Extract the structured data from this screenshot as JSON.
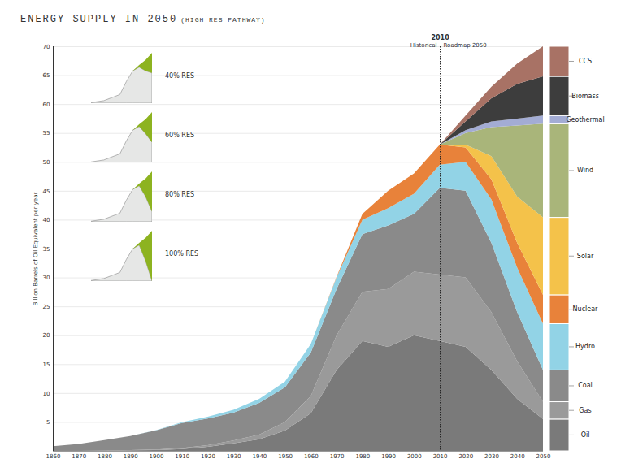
{
  "chart_data": {
    "type": "area",
    "title": "ENERGY SUPPLY IN 2050",
    "subtitle": "(HIGH RES PATHWAY)",
    "y_label": "Billion Barrels of Oil Equivalent per year",
    "stacked": true,
    "grid": true,
    "legend": "right",
    "x": [
      1860,
      1870,
      1880,
      1890,
      1900,
      1910,
      1920,
      1930,
      1940,
      1950,
      1960,
      1970,
      1980,
      1990,
      2000,
      2010,
      2020,
      2030,
      2040,
      2050
    ],
    "xlim": [
      1860,
      2050
    ],
    "xticks": [
      1860,
      1870,
      1880,
      1890,
      1900,
      1910,
      1920,
      1930,
      1940,
      1950,
      1960,
      1970,
      1980,
      1990,
      2000,
      2010,
      2020,
      2030,
      2040,
      2050
    ],
    "ylim": [
      0,
      70
    ],
    "yticks": [
      5,
      10,
      15,
      20,
      25,
      30,
      35,
      40,
      45,
      50,
      55,
      60,
      65,
      70
    ],
    "series": [
      {
        "name": "Oil",
        "color": "#7a7a7a",
        "values": [
          0,
          0,
          0.05,
          0.1,
          0.15,
          0.3,
          0.7,
          1.3,
          2,
          3.5,
          6.5,
          14,
          19,
          18,
          20,
          19,
          18,
          14,
          9,
          5.5
        ]
      },
      {
        "name": "Gas",
        "color": "#9a9a9a",
        "values": [
          0,
          0,
          0,
          0.05,
          0.1,
          0.2,
          0.3,
          0.5,
          0.8,
          1.5,
          3,
          6,
          8.5,
          10,
          11,
          11.5,
          12,
          10,
          6.5,
          3
        ]
      },
      {
        "name": "Coal",
        "color": "#8a8a8a",
        "values": [
          0.8,
          1.2,
          1.8,
          2.4,
          3.3,
          4.3,
          4.6,
          4.8,
          5.5,
          6,
          7.5,
          8,
          10,
          11,
          10,
          15,
          15,
          12,
          8.5,
          5.5
        ]
      },
      {
        "name": "Hydro",
        "color": "#92d3e6",
        "values": [
          0,
          0,
          0,
          0,
          0.05,
          0.15,
          0.3,
          0.5,
          0.7,
          1,
          1.5,
          2,
          2.5,
          3,
          3.5,
          4,
          5,
          7.5,
          7.7,
          8
        ]
      },
      {
        "name": "Nuclear",
        "color": "#e8823a",
        "values": [
          0,
          0,
          0,
          0,
          0,
          0,
          0,
          0,
          0,
          0,
          0,
          0.1,
          1,
          3,
          3.5,
          3.5,
          2.5,
          3.5,
          4.3,
          5
        ]
      },
      {
        "name": "Solar",
        "color": "#f4c24a",
        "values": [
          0,
          0,
          0,
          0,
          0,
          0,
          0,
          0,
          0,
          0,
          0,
          0,
          0,
          0,
          0,
          0,
          0.5,
          4,
          8,
          13.4
        ]
      },
      {
        "name": "Wind",
        "color": "#a9b57a",
        "values": [
          0,
          0,
          0,
          0,
          0,
          0,
          0,
          0,
          0,
          0,
          0,
          0,
          0,
          0,
          0,
          0,
          2,
          5,
          12.3,
          16.2
        ]
      },
      {
        "name": "Geothermal",
        "color": "#a3acd4",
        "values": [
          0,
          0,
          0,
          0,
          0,
          0,
          0,
          0,
          0,
          0,
          0,
          0,
          0,
          0,
          0,
          0,
          0.5,
          1,
          1.2,
          1.4
        ]
      },
      {
        "name": "Biomass",
        "color": "#3d3d3d",
        "values": [
          0,
          0,
          0,
          0,
          0,
          0,
          0,
          0,
          0,
          0,
          0,
          0,
          0,
          0,
          0,
          0,
          1.5,
          4,
          6,
          6.8
        ]
      },
      {
        "name": "CCS",
        "color": "#a87265",
        "values": [
          0,
          0,
          0,
          0,
          0,
          0,
          0,
          0,
          0,
          0,
          0,
          0,
          0,
          0,
          0,
          0,
          1,
          2,
          3.5,
          5.2
        ]
      }
    ],
    "divider": {
      "x": 2010,
      "left": "Historical",
      "right": "Roadmap 2050"
    },
    "insets": {
      "x": [
        1860,
        1900,
        1950,
        1970,
        1990,
        2010,
        2030,
        2050
      ],
      "xlim": [
        1860,
        2050
      ],
      "ylim": [
        0,
        70
      ],
      "panels": [
        {
          "label": "40% RES",
          "fossil": [
            0.8,
            3.5,
            12,
            30,
            45,
            50,
            45,
            42
          ],
          "res": [
            0,
            0,
            0,
            0,
            0,
            3,
            15,
            28
          ]
        },
        {
          "label": "60% RES",
          "fossil": [
            0.8,
            3.5,
            12,
            30,
            45,
            50,
            40,
            28
          ],
          "res": [
            0,
            0,
            0,
            0,
            0,
            3,
            20,
            42
          ]
        },
        {
          "label": "80% RES",
          "fossil": [
            0.8,
            3.5,
            12,
            30,
            45,
            50,
            35,
            14
          ],
          "res": [
            0,
            0,
            0,
            0,
            0,
            3,
            25,
            56
          ]
        },
        {
          "label": "100% RES",
          "fossil": [
            0.8,
            3.5,
            12,
            30,
            45,
            50,
            28,
            0
          ],
          "res": [
            0,
            0,
            0,
            0,
            0,
            3,
            32,
            70
          ]
        }
      ]
    }
  }
}
